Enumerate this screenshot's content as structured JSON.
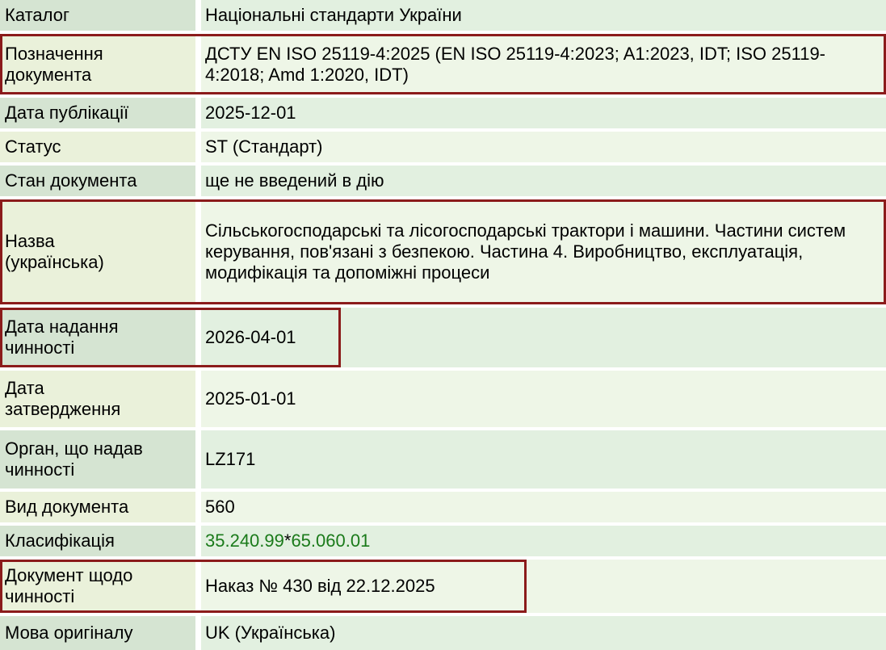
{
  "table": {
    "rows": [
      {
        "label": "Каталог",
        "value": "Національні стандарти України",
        "highlighted": false
      },
      {
        "label": "Позначення документа",
        "value": "ДСТУ EN ISO 25119-4:2025 (EN ISO 25119-4:2023; A1:2023, IDT; ISO 25119-4:2018; Amd 1:2020, IDT)",
        "highlighted": true
      },
      {
        "label": "Дата публікації",
        "value": "2025-12-01",
        "highlighted": false
      },
      {
        "label": "Статус",
        "value": "ST (Стандарт)",
        "highlighted": false
      },
      {
        "label": "Стан документа",
        "value": "ще не введений в дію",
        "highlighted": false
      },
      {
        "label": "Назва (українська)",
        "value": "Сільськогосподарські та лісогосподарські трактори і машини. Частини систем керування, пов'язані з безпекою. Частина 4. Виробництво, експлуатація, модифікація та допоміжні процеси",
        "highlighted": true
      },
      {
        "label": "Дата надання чинності",
        "value": "2026-04-01",
        "highlighted": true
      },
      {
        "label": "Дата затвердження",
        "value": "2025-01-01",
        "highlighted": false
      },
      {
        "label": "Орган, що надав чинності",
        "value": "LZ171",
        "highlighted": false
      },
      {
        "label": "Вид документа",
        "value": "560",
        "highlighted": false
      },
      {
        "label": "Класифікація",
        "links": [
          "35.240.99",
          "65.060.01"
        ],
        "separator": " * ",
        "highlighted": false
      },
      {
        "label": "Документ щодо чинності",
        "value": "Наказ № 430 від 22.12.2025",
        "highlighted": true
      },
      {
        "label": "Мова оригіналу",
        "value": "UK (Українська)",
        "highlighted": false
      }
    ]
  },
  "colors": {
    "highlight_border": "#8b1b1b",
    "classification_link_green": "#1a7a1a",
    "stripe_a_label": "#d5e4d2",
    "stripe_a_value": "#e2f0e0",
    "stripe_b_label": "#eaf1da",
    "stripe_b_value": "#eef6e7"
  }
}
